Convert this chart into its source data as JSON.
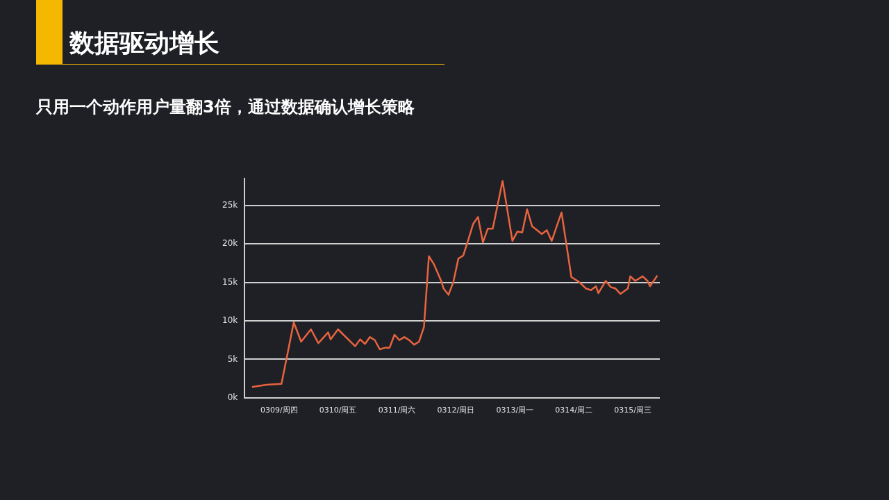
{
  "chart_data": {
    "type": "line",
    "title": "数据驱动增长",
    "subtitle": "只用一个动作用户量翻3倍，通过数据确认增长策略",
    "series": [
      {
        "color": "#e8643f",
        "x": [
          "--03-08T13:00",
          "--03-08T19:00",
          "--03-09T01:00",
          "--03-09T06:00",
          "--03-09T09:00",
          "--03-09T13:00",
          "--03-09T16:00",
          "--03-09T20:00",
          "--03-09T21:00",
          "--03-10T00:00",
          "--03-10T07:00",
          "--03-10T09:00",
          "--03-10T11:00",
          "--03-10T13:00",
          "--03-10T15:00",
          "--03-10T17:00",
          "--03-10T19:00",
          "--03-10T21:00",
          "--03-10T23:00",
          "--03-11T01:00",
          "--03-11T03:00",
          "--03-11T05:00",
          "--03-11T07:00",
          "--03-11T09:00",
          "--03-11T11:00",
          "--03-11T13:00",
          "--03-11T15:00",
          "--03-11T18:00",
          "--03-11T19:00",
          "--03-11T21:00",
          "--03-11T23:00",
          "--03-12T01:00",
          "--03-12T03:00",
          "--03-12T05:00",
          "--03-12T07:00",
          "--03-12T09:00",
          "--03-12T11:00",
          "--03-12T13:00",
          "--03-12T15:00",
          "--03-12T19:00",
          "--03-12T23:00",
          "--03-13T01:00",
          "--03-13T03:00",
          "--03-13T05:00",
          "--03-13T07:00",
          "--03-13T11:00",
          "--03-13T13:00",
          "--03-13T15:00",
          "--03-13T19:00",
          "--03-13T23:00",
          "--03-14T02:00",
          "--03-14T05:00",
          "--03-14T07:00",
          "--03-14T09:00",
          "--03-14T10:00",
          "--03-14T13:00",
          "--03-14T15:00",
          "--03-14T17:00",
          "--03-14T19:00",
          "--03-14T22:00",
          "--03-14T23:00",
          "--03-15T01:00",
          "--03-15T04:00",
          "--03-15T06:00",
          "--03-15T07:00",
          "--03-15T10:00"
        ],
        "values": [
          1.4,
          1.7,
          1.8,
          9.8,
          7.3,
          8.9,
          7.1,
          8.5,
          7.6,
          8.9,
          6.7,
          7.6,
          7.0,
          7.9,
          7.5,
          6.3,
          6.5,
          6.5,
          8.2,
          7.5,
          7.9,
          7.5,
          6.9,
          7.3,
          9.2,
          18.4,
          17.4,
          15.2,
          14.2,
          13.4,
          15.1,
          18.1,
          18.5,
          20.5,
          22.6,
          23.5,
          20.2,
          22.0,
          22.0,
          28.2,
          20.4,
          21.6,
          21.5,
          24.5,
          22.3,
          21.3,
          21.8,
          20.4,
          24.1,
          15.7,
          15.1,
          14.2,
          14.0,
          14.5,
          13.6,
          15.2,
          14.4,
          14.2,
          13.5,
          14.2,
          15.8,
          15.2,
          15.8,
          15.2,
          14.5,
          15.9
        ]
      }
    ],
    "xlim": [
      "--03-08T10:00",
      "--03-15T11:00"
    ],
    "xticks": [
      {
        "value": "--03-09",
        "label": "0309/周四"
      },
      {
        "value": "--03-10",
        "label": "0310/周五"
      },
      {
        "value": "--03-11",
        "label": "0311/周六"
      },
      {
        "value": "--03-12",
        "label": "0312/周日"
      },
      {
        "value": "--03-13",
        "label": "0313/周一"
      },
      {
        "value": "--03-14",
        "label": "0314/周二"
      },
      {
        "value": "--03-15",
        "label": "0315/周三"
      }
    ],
    "ylim": [
      0,
      28.5
    ],
    "yticks": [
      {
        "value": 0,
        "label": "0k"
      },
      {
        "value": 5,
        "label": "5k"
      },
      {
        "value": 10,
        "label": "10k"
      },
      {
        "value": 15,
        "label": "15k"
      },
      {
        "value": 20,
        "label": "20k"
      },
      {
        "value": 25,
        "label": "25k"
      }
    ],
    "grid": "y",
    "legend": false,
    "marker": "none",
    "line_style": "solid"
  }
}
